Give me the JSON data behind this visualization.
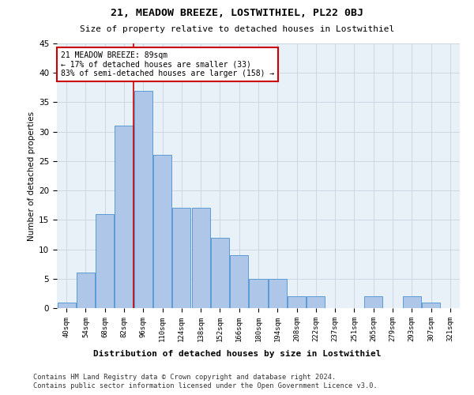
{
  "title": "21, MEADOW BREEZE, LOSTWITHIEL, PL22 0BJ",
  "subtitle": "Size of property relative to detached houses in Lostwithiel",
  "xlabel": "Distribution of detached houses by size in Lostwithiel",
  "ylabel": "Number of detached properties",
  "categories": [
    "40sqm",
    "54sqm",
    "68sqm",
    "82sqm",
    "96sqm",
    "110sqm",
    "124sqm",
    "138sqm",
    "152sqm",
    "166sqm",
    "180sqm",
    "194sqm",
    "208sqm",
    "222sqm",
    "237sqm",
    "251sqm",
    "265sqm",
    "279sqm",
    "293sqm",
    "307sqm",
    "321sqm"
  ],
  "bar_values": [
    1,
    6,
    16,
    31,
    37,
    26,
    17,
    17,
    12,
    9,
    5,
    5,
    2,
    2,
    0,
    0,
    2,
    0,
    2,
    1,
    0
  ],
  "bar_color": "#aec6e8",
  "bar_edge_color": "#5b9bd5",
  "ylim": [
    0,
    45
  ],
  "yticks": [
    0,
    5,
    10,
    15,
    20,
    25,
    30,
    35,
    40,
    45
  ],
  "annotation_title": "21 MEADOW BREEZE: 89sqm",
  "annotation_line1": "← 17% of detached houses are smaller (33)",
  "annotation_line2": "83% of semi-detached houses are larger (158) →",
  "annotation_box_color": "#ffffff",
  "annotation_box_edge": "#cc0000",
  "property_line_color": "#cc0000",
  "footer1": "Contains HM Land Registry data © Crown copyright and database right 2024.",
  "footer2": "Contains public sector information licensed under the Open Government Licence v3.0.",
  "background_color": "#ffffff",
  "plot_bg_color": "#e8f0f8",
  "grid_color": "#c8d4e0"
}
